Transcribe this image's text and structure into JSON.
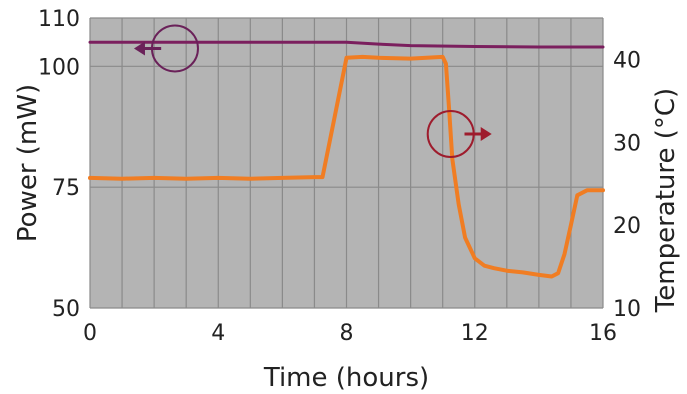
{
  "chart_data": {
    "type": "line",
    "title": "",
    "xlabel": "Time (hours)",
    "ylabel_left": "Power (mW)",
    "ylabel_right": "Temperature (°C)",
    "xlim": [
      0,
      16
    ],
    "ylim_left": [
      50,
      110
    ],
    "ylim_right": [
      10,
      45
    ],
    "x_ticks": [
      0,
      4,
      8,
      12,
      16
    ],
    "y_left_ticks": [
      50,
      75,
      100,
      110
    ],
    "y_right_ticks": [
      10,
      20,
      30,
      40
    ],
    "grid": true,
    "background_color": "#b4b4b4",
    "series": [
      {
        "axis": "left",
        "color": "#7b1f5e",
        "x": [
          0,
          2,
          4,
          6,
          8,
          9,
          10,
          12,
          14,
          16
        ],
        "y": [
          105.0,
          105.0,
          105.0,
          105.0,
          105.0,
          104.6,
          104.3,
          104.1,
          104.0,
          104.0
        ]
      },
      {
        "axis": "right",
        "color": "#f07d23",
        "x": [
          0,
          1,
          2,
          3,
          4,
          5,
          6,
          7,
          7.25,
          7.6,
          8.0,
          8.5,
          9,
          10,
          10.5,
          11,
          11.1,
          11.2,
          11.3,
          11.5,
          11.7,
          12.0,
          12.3,
          12.6,
          13,
          13.5,
          14,
          14.4,
          14.6,
          14.8,
          15.0,
          15.2,
          15.5,
          16
        ],
        "y": [
          25.7,
          25.6,
          25.7,
          25.6,
          25.7,
          25.6,
          25.7,
          25.8,
          25.8,
          32.5,
          40.2,
          40.3,
          40.2,
          40.1,
          40.2,
          40.3,
          39.5,
          34.0,
          28.0,
          22.5,
          18.5,
          16.0,
          15.1,
          14.8,
          14.5,
          14.3,
          14.0,
          13.8,
          14.2,
          16.5,
          20.0,
          23.6,
          24.2,
          24.2
        ]
      }
    ],
    "annotations": [
      {
        "target_axis": "left",
        "arrow": "left",
        "color": "#6a2159",
        "x": 2.65,
        "y": 103.7
      },
      {
        "target_axis": "right",
        "arrow": "right",
        "color": "#9e1c2d",
        "x": 11.25,
        "y": 31.0
      }
    ]
  }
}
